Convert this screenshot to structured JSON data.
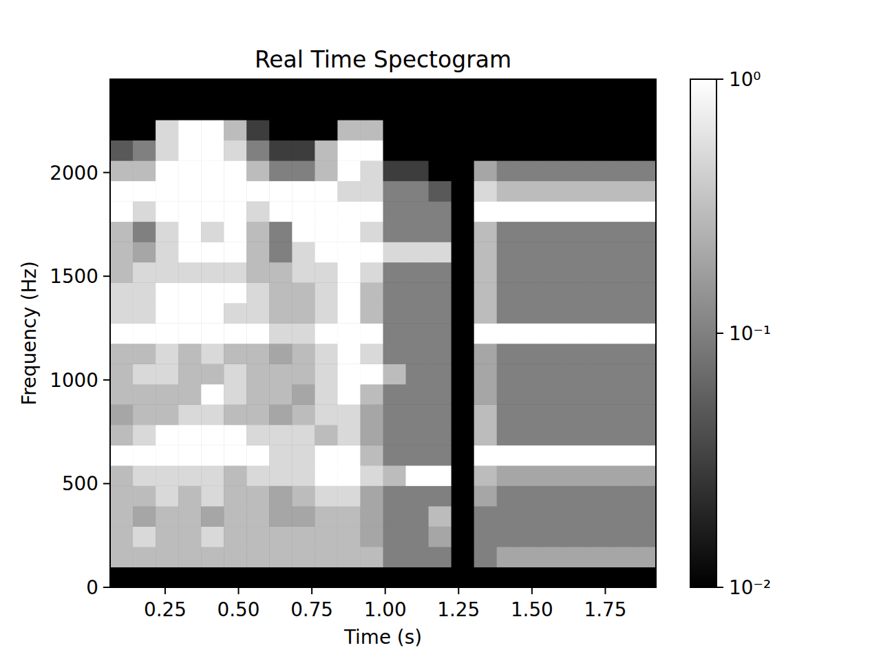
{
  "chart_data": {
    "type": "heatmap",
    "title": "Real Time Spectogram",
    "x_label": "Time (s)",
    "y_label": "Frequency (Hz)",
    "xlim": [
      0.0625,
      1.9225
    ],
    "ylim": [
      0,
      2450
    ],
    "xticks": [
      0.25,
      {
        "value": 0.5,
        "label": "0.50"
      },
      0.75,
      {
        "value": 1,
        "label": "1.00"
      },
      1.25,
      {
        "value": 1.5,
        "label": "1.50"
      },
      1.75
    ],
    "yticks": [
      0,
      500,
      1000,
      1500,
      2000
    ],
    "color": "gray",
    "x_edges": [
      0.0625,
      0.14,
      0.2175,
      0.295,
      0.3725,
      0.45,
      0.5275,
      0.605,
      0.6825,
      0.76,
      0.8375,
      0.915,
      0.9925,
      1.07,
      1.1475,
      1.225,
      1.3025,
      1.38,
      1.4575,
      1.535,
      1.6125,
      1.69,
      1.7675,
      1.845,
      1.9225
    ],
    "y_edges": [
      0,
      98,
      196,
      294,
      392,
      490,
      588,
      686,
      784,
      882,
      980,
      1078,
      1176,
      1274,
      1372,
      1470,
      1568,
      1666,
      1764,
      1862,
      1960,
      2058,
      2156,
      2254,
      2352,
      2450
    ],
    "z": [
      [
        0.01,
        0.01,
        0.01,
        0.01,
        0.01,
        0.01,
        0.01,
        0.01,
        0.01,
        0.01,
        0.01,
        0.01,
        0.01,
        0.01,
        0.01,
        0.01,
        0.01,
        0.01,
        0.01,
        0.01,
        0.01,
        0.01,
        0.01,
        0.01
      ],
      [
        0.3,
        0.3,
        0.3,
        0.3,
        0.3,
        0.3,
        0.3,
        0.3,
        0.3,
        0.3,
        0.3,
        0.3,
        0.1,
        0.1,
        0.1,
        0.01,
        0.1,
        0.2,
        0.2,
        0.2,
        0.2,
        0.2,
        0.2,
        0.2
      ],
      [
        0.3,
        0.5,
        0.3,
        0.3,
        0.5,
        0.3,
        0.3,
        0.3,
        0.3,
        0.3,
        0.3,
        0.2,
        0.1,
        0.1,
        0.2,
        0.01,
        0.1,
        0.1,
        0.1,
        0.1,
        0.1,
        0.1,
        0.1,
        0.1
      ],
      [
        0.3,
        0.2,
        0.3,
        0.3,
        0.2,
        0.3,
        0.3,
        0.2,
        0.2,
        0.3,
        0.3,
        0.2,
        0.1,
        0.1,
        0.3,
        0.01,
        0.1,
        0.1,
        0.1,
        0.1,
        0.1,
        0.1,
        0.1,
        0.1
      ],
      [
        0.3,
        0.3,
        0.5,
        0.3,
        0.5,
        0.3,
        0.3,
        0.2,
        0.3,
        0.5,
        0.5,
        0.2,
        0.1,
        0.1,
        0.1,
        0.01,
        0.2,
        0.1,
        0.1,
        0.1,
        0.1,
        0.1,
        0.1,
        0.1
      ],
      [
        0.3,
        0.5,
        0.5,
        0.5,
        0.5,
        0.3,
        0.5,
        0.5,
        0.5,
        1,
        1,
        0.5,
        0.3,
        1,
        1,
        0.01,
        0.3,
        0.2,
        0.2,
        0.2,
        0.2,
        0.2,
        0.2,
        0.2
      ],
      [
        1,
        1,
        1,
        1,
        1,
        1,
        1,
        0.5,
        0.5,
        1,
        1,
        0.3,
        0.1,
        0.1,
        0.1,
        0.01,
        1,
        1,
        1,
        1,
        1,
        1,
        1,
        1
      ],
      [
        0.3,
        0.5,
        1,
        1,
        1,
        1,
        0.5,
        0.5,
        0.5,
        0.3,
        0.5,
        0.2,
        0.1,
        0.1,
        0.1,
        0.01,
        0.3,
        0.1,
        0.1,
        0.1,
        0.1,
        0.1,
        0.1,
        0.1
      ],
      [
        0.2,
        0.3,
        0.3,
        0.5,
        0.5,
        0.3,
        0.3,
        0.2,
        0.3,
        0.5,
        0.5,
        0.2,
        0.1,
        0.1,
        0.1,
        0.01,
        0.3,
        0.1,
        0.1,
        0.1,
        0.1,
        0.1,
        0.1,
        0.1
      ],
      [
        0.3,
        0.3,
        0.3,
        0.3,
        1,
        0.5,
        0.3,
        0.3,
        0.2,
        0.5,
        1,
        0.3,
        0.1,
        0.1,
        0.1,
        0.01,
        0.2,
        0.1,
        0.1,
        0.1,
        0.1,
        0.1,
        0.1,
        0.1
      ],
      [
        0.3,
        0.5,
        0.5,
        0.3,
        0.3,
        0.5,
        0.3,
        0.3,
        0.3,
        0.5,
        1,
        1,
        0.3,
        0.1,
        0.1,
        0.01,
        0.2,
        0.1,
        0.1,
        0.1,
        0.1,
        0.1,
        0.1,
        0.1
      ],
      [
        0.3,
        0.3,
        0.5,
        0.3,
        0.5,
        0.3,
        0.3,
        0.2,
        0.3,
        0.5,
        1,
        0.5,
        0.1,
        0.1,
        0.1,
        0.01,
        0.2,
        0.1,
        0.1,
        0.1,
        0.1,
        0.1,
        0.1,
        0.1
      ],
      [
        1,
        1,
        1,
        1,
        1,
        1,
        1,
        0.5,
        0.5,
        1,
        1,
        1,
        0.1,
        0.1,
        0.1,
        0.01,
        1,
        1,
        1,
        1,
        1,
        1,
        1,
        1
      ],
      [
        0.5,
        0.5,
        1,
        1,
        1,
        0.5,
        0.5,
        0.3,
        0.3,
        0.5,
        1,
        0.3,
        0.1,
        0.1,
        0.1,
        0.01,
        0.3,
        0.1,
        0.1,
        0.1,
        0.1,
        0.1,
        0.1,
        0.1
      ],
      [
        0.5,
        0.5,
        1,
        1,
        1,
        1,
        0.5,
        0.3,
        0.3,
        0.5,
        1,
        0.3,
        0.1,
        0.1,
        0.1,
        0.01,
        0.3,
        0.1,
        0.1,
        0.1,
        0.1,
        0.1,
        0.1,
        0.1
      ],
      [
        0.3,
        0.5,
        0.5,
        0.5,
        0.5,
        0.5,
        0.3,
        0.3,
        0.5,
        0.5,
        1,
        0.5,
        0.1,
        0.1,
        0.1,
        0.01,
        0.3,
        0.1,
        0.1,
        0.1,
        0.1,
        0.1,
        0.1,
        0.1
      ],
      [
        0.3,
        0.2,
        0.5,
        1,
        1,
        1,
        0.3,
        0.1,
        0.5,
        1,
        1,
        1,
        0.5,
        0.5,
        0.5,
        0.01,
        0.3,
        0.1,
        0.1,
        0.1,
        0.1,
        0.1,
        0.1,
        0.1
      ],
      [
        0.3,
        0.1,
        0.5,
        1,
        0.5,
        1,
        0.3,
        0.1,
        1,
        1,
        1,
        0.5,
        0.1,
        0.1,
        0.1,
        0.01,
        0.3,
        0.1,
        0.1,
        0.1,
        0.1,
        0.1,
        0.1,
        0.1
      ],
      [
        1,
        0.5,
        1,
        1,
        1,
        1,
        0.5,
        1,
        1,
        1,
        1,
        1,
        0.1,
        0.1,
        0.1,
        0.01,
        1,
        1,
        1,
        1,
        1,
        1,
        1,
        1
      ],
      [
        1,
        1,
        1,
        1,
        1,
        1,
        1,
        1,
        1,
        1,
        0.5,
        0.5,
        0.1,
        0.1,
        0.05,
        0.01,
        0.5,
        0.3,
        0.3,
        0.3,
        0.3,
        0.3,
        0.3,
        0.3
      ],
      [
        0.3,
        0.3,
        1,
        1,
        1,
        1,
        0.3,
        0.1,
        0.1,
        0.3,
        1,
        0.5,
        0.03,
        0.03,
        0.01,
        0.01,
        0.2,
        0.1,
        0.1,
        0.1,
        0.1,
        0.1,
        0.1,
        0.1
      ],
      [
        0.05,
        0.1,
        0.5,
        1,
        1,
        0.5,
        0.1,
        0.03,
        0.03,
        0.3,
        1,
        1,
        0.01,
        0.01,
        0.01,
        0.01,
        0.01,
        0.01,
        0.01,
        0.01,
        0.01,
        0.01,
        0.01,
        0.01
      ],
      [
        0.01,
        0.01,
        0.5,
        1,
        1,
        0.3,
        0.03,
        0.01,
        0.01,
        0.01,
        0.3,
        0.3,
        0.01,
        0.01,
        0.01,
        0.01,
        0.01,
        0.01,
        0.01,
        0.01,
        0.01,
        0.01,
        0.01,
        0.01
      ],
      [
        0.01,
        0.01,
        0.01,
        0.01,
        0.01,
        0.01,
        0.01,
        0.01,
        0.01,
        0.01,
        0.01,
        0.01,
        0.01,
        0.01,
        0.01,
        0.01,
        0.01,
        0.01,
        0.01,
        0.01,
        0.01,
        0.01,
        0.01,
        0.01
      ],
      [
        0.01,
        0.01,
        0.01,
        0.01,
        0.01,
        0.01,
        0.01,
        0.01,
        0.01,
        0.01,
        0.01,
        0.01,
        0.01,
        0.01,
        0.01,
        0.01,
        0.01,
        0.01,
        0.01,
        0.01,
        0.01,
        0.01,
        0.01,
        0.01
      ]
    ],
    "colorbar": {
      "range": [
        0.01,
        1
      ],
      "log": true,
      "ticks": [
        {
          "value": 0.01,
          "label": "10⁻²"
        },
        {
          "value": 0.1,
          "label": "10⁻¹"
        },
        {
          "value": 1,
          "label": "10⁰"
        }
      ]
    }
  }
}
